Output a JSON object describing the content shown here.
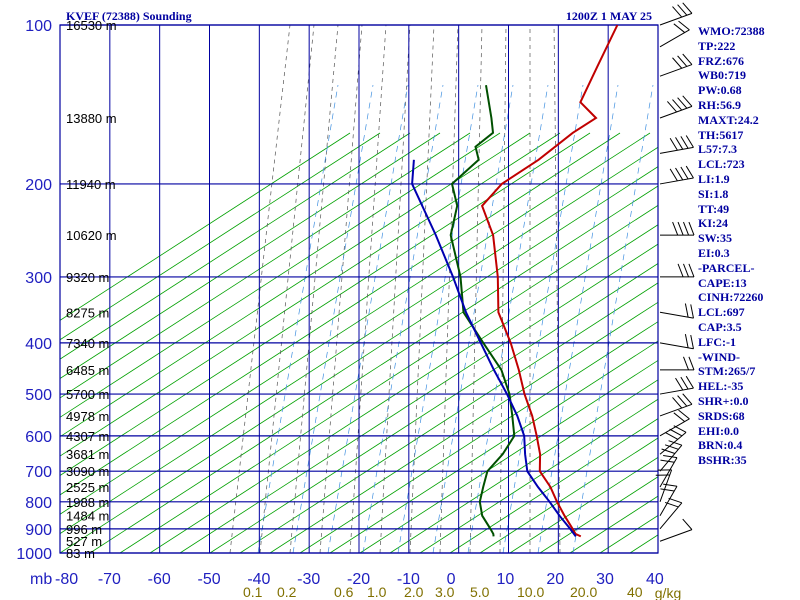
{
  "title_left": "KVEF (72388) Sounding",
  "title_right": "1200Z  1 MAY 25",
  "units_label": "mb",
  "mixing_unit": "g/kg",
  "indices": [
    "WMO:72388",
    "TP:222",
    "FRZ:676",
    "WB0:719",
    "PW:0.68",
    "RH:56.9",
    "MAXT:24.2",
    "TH:5617",
    "L57:7.3",
    "LCL:723",
    "LI:1.9",
    "SI:1.8",
    "TT:49",
    "KI:24",
    "SW:35",
    "EI:0.3",
    "-PARCEL-",
    "CAPE:13",
    "CINH:72260",
    "LCL:697",
    "CAP:3.5",
    "LFC:-1",
    "-WIND-",
    "STM:265/7",
    "HEL:-35",
    "SHR+:0.0",
    "SRDS:68",
    "EHI:0.0",
    "BRN:0.4",
    "BSHR:35"
  ],
  "colors": {
    "grid": "#0000a0",
    "isotherm": "#0000a0",
    "dry_adiabat": "#00a000",
    "moist_adiabat": "#555555",
    "mixing_ratio": "#4090e0",
    "temperature": "#c00000",
    "dewpoint": "#005000",
    "parcel": "#0000b0",
    "wind": "#000000"
  },
  "chart_data": {
    "type": "line",
    "title": "KVEF (72388) Sounding",
    "x_label": "",
    "y_label": "mb",
    "x_range": [
      -80,
      0
    ],
    "y_range": [
      100,
      1000
    ],
    "y_scale": "log",
    "x_ticks": [
      -80,
      -70,
      -60,
      -50,
      -40,
      -30,
      -20,
      -10,
      0,
      10,
      20,
      30,
      40
    ],
    "x_tick_labels": [
      "-80",
      "-70",
      "-60",
      "-50",
      "-40",
      "-30",
      "-20",
      "-10",
      "0",
      "10",
      "20",
      "30",
      "40"
    ],
    "pressure_ticks": [
      100,
      200,
      300,
      400,
      500,
      600,
      700,
      800,
      900,
      1000
    ],
    "heights": [
      {
        "p": 100,
        "label": "16530 m"
      },
      {
        "p": 150,
        "label": "13880 m"
      },
      {
        "p": 200,
        "label": "11940 m"
      },
      {
        "p": 250,
        "label": "10620 m"
      },
      {
        "p": 300,
        "label": "9320 m"
      },
      {
        "p": 350,
        "label": "8275 m"
      },
      {
        "p": 400,
        "label": "7340 m"
      },
      {
        "p": 450,
        "label": "6485 m"
      },
      {
        "p": 500,
        "label": "5700 m"
      },
      {
        "p": 550,
        "label": "4978 m"
      },
      {
        "p": 600,
        "label": "4307 m"
      },
      {
        "p": 650,
        "label": "3681 m"
      },
      {
        "p": 700,
        "label": "3090 m"
      },
      {
        "p": 750,
        "label": "2525 m"
      },
      {
        "p": 800,
        "label": "1988 m"
      },
      {
        "p": 850,
        "label": "1484 m"
      },
      {
        "p": 900,
        "label": "996 m"
      },
      {
        "p": 950,
        "label": "527 m"
      },
      {
        "p": 1000,
        "label": "83 m"
      }
    ],
    "mixing_ratio_labels": [
      {
        "w": 0.1,
        "label": "0.1"
      },
      {
        "w": 0.2,
        "label": "0.2"
      },
      {
        "w": 0.6,
        "label": "0.6"
      },
      {
        "w": 1.0,
        "label": "1.0"
      },
      {
        "w": 2.0,
        "label": "2.0"
      },
      {
        "w": 3.0,
        "label": "3.0"
      },
      {
        "w": 5.0,
        "label": "5.0"
      },
      {
        "w": 10.0,
        "label": "10.0"
      },
      {
        "w": 20.0,
        "label": "20.0"
      },
      {
        "w": 40.0,
        "label": "40"
      }
    ],
    "series": [
      {
        "key": "temperature",
        "points": [
          [
            100,
            -63.5
          ],
          [
            120,
            -60
          ],
          [
            140,
            -57
          ],
          [
            150,
            -51
          ],
          [
            160,
            -53
          ],
          [
            180,
            -55
          ],
          [
            200,
            -58
          ],
          [
            220,
            -58
          ],
          [
            250,
            -50.5
          ],
          [
            300,
            -42
          ],
          [
            350,
            -35.5
          ],
          [
            400,
            -27.5
          ],
          [
            450,
            -21
          ],
          [
            500,
            -15.5
          ],
          [
            550,
            -10
          ],
          [
            600,
            -5.5
          ],
          [
            650,
            -1.5
          ],
          [
            700,
            1.5
          ],
          [
            750,
            6.5
          ],
          [
            800,
            10.5
          ],
          [
            850,
            14.5
          ],
          [
            900,
            18.5
          ],
          [
            920,
            20
          ],
          [
            930,
            21.5
          ]
        ]
      },
      {
        "key": "dewpoint",
        "points": [
          [
            130,
            -79
          ],
          [
            150,
            -72
          ],
          [
            160,
            -69
          ],
          [
            170,
            -70
          ],
          [
            180,
            -67
          ],
          [
            200,
            -68
          ],
          [
            220,
            -63
          ],
          [
            250,
            -59
          ],
          [
            300,
            -49.5
          ],
          [
            350,
            -42.5
          ],
          [
            400,
            -33
          ],
          [
            450,
            -24.5
          ],
          [
            500,
            -18.5
          ],
          [
            550,
            -14
          ],
          [
            600,
            -10
          ],
          [
            650,
            -9
          ],
          [
            700,
            -9
          ],
          [
            750,
            -7
          ],
          [
            800,
            -5
          ],
          [
            850,
            -2
          ],
          [
            900,
            2
          ],
          [
            920,
            3.5
          ],
          [
            930,
            4
          ]
        ]
      },
      {
        "key": "parcel",
        "points": [
          [
            180,
            -80
          ],
          [
            200,
            -76
          ],
          [
            250,
            -62
          ],
          [
            300,
            -51
          ],
          [
            350,
            -42
          ],
          [
            400,
            -33.5
          ],
          [
            450,
            -26
          ],
          [
            500,
            -19
          ],
          [
            550,
            -13
          ],
          [
            600,
            -8
          ],
          [
            650,
            -4.5
          ],
          [
            700,
            -1
          ],
          [
            750,
            4
          ],
          [
            800,
            9
          ],
          [
            850,
            13.5
          ],
          [
            900,
            18
          ],
          [
            930,
            20.5
          ]
        ]
      }
    ],
    "winds": [
      {
        "p": 950,
        "speed_kt": 10,
        "dir": 250
      },
      {
        "p": 900,
        "speed_kt": 15,
        "dir": 220
      },
      {
        "p": 850,
        "speed_kt": 15,
        "dir": 210
      },
      {
        "p": 800,
        "speed_kt": 20,
        "dir": 200
      },
      {
        "p": 750,
        "speed_kt": 20,
        "dir": 210
      },
      {
        "p": 700,
        "speed_kt": 25,
        "dir": 220
      },
      {
        "p": 650,
        "speed_kt": 25,
        "dir": 230
      },
      {
        "p": 600,
        "speed_kt": 20,
        "dir": 240
      },
      {
        "p": 550,
        "speed_kt": 30,
        "dir": 250
      },
      {
        "p": 500,
        "speed_kt": 25,
        "dir": 260
      },
      {
        "p": 450,
        "speed_kt": 15,
        "dir": 270
      },
      {
        "p": 400,
        "speed_kt": 15,
        "dir": 280
      },
      {
        "p": 350,
        "speed_kt": 20,
        "dir": 280
      },
      {
        "p": 300,
        "speed_kt": 30,
        "dir": 270
      },
      {
        "p": 250,
        "speed_kt": 35,
        "dir": 270
      },
      {
        "p": 200,
        "speed_kt": 35,
        "dir": 260
      },
      {
        "p": 175,
        "speed_kt": 35,
        "dir": 260
      },
      {
        "p": 150,
        "speed_kt": 40,
        "dir": 250
      },
      {
        "p": 125,
        "speed_kt": 25,
        "dir": 250
      },
      {
        "p": 110,
        "speed_kt": 20,
        "dir": 240
      },
      {
        "p": 100,
        "speed_kt": 25,
        "dir": 250
      }
    ]
  }
}
